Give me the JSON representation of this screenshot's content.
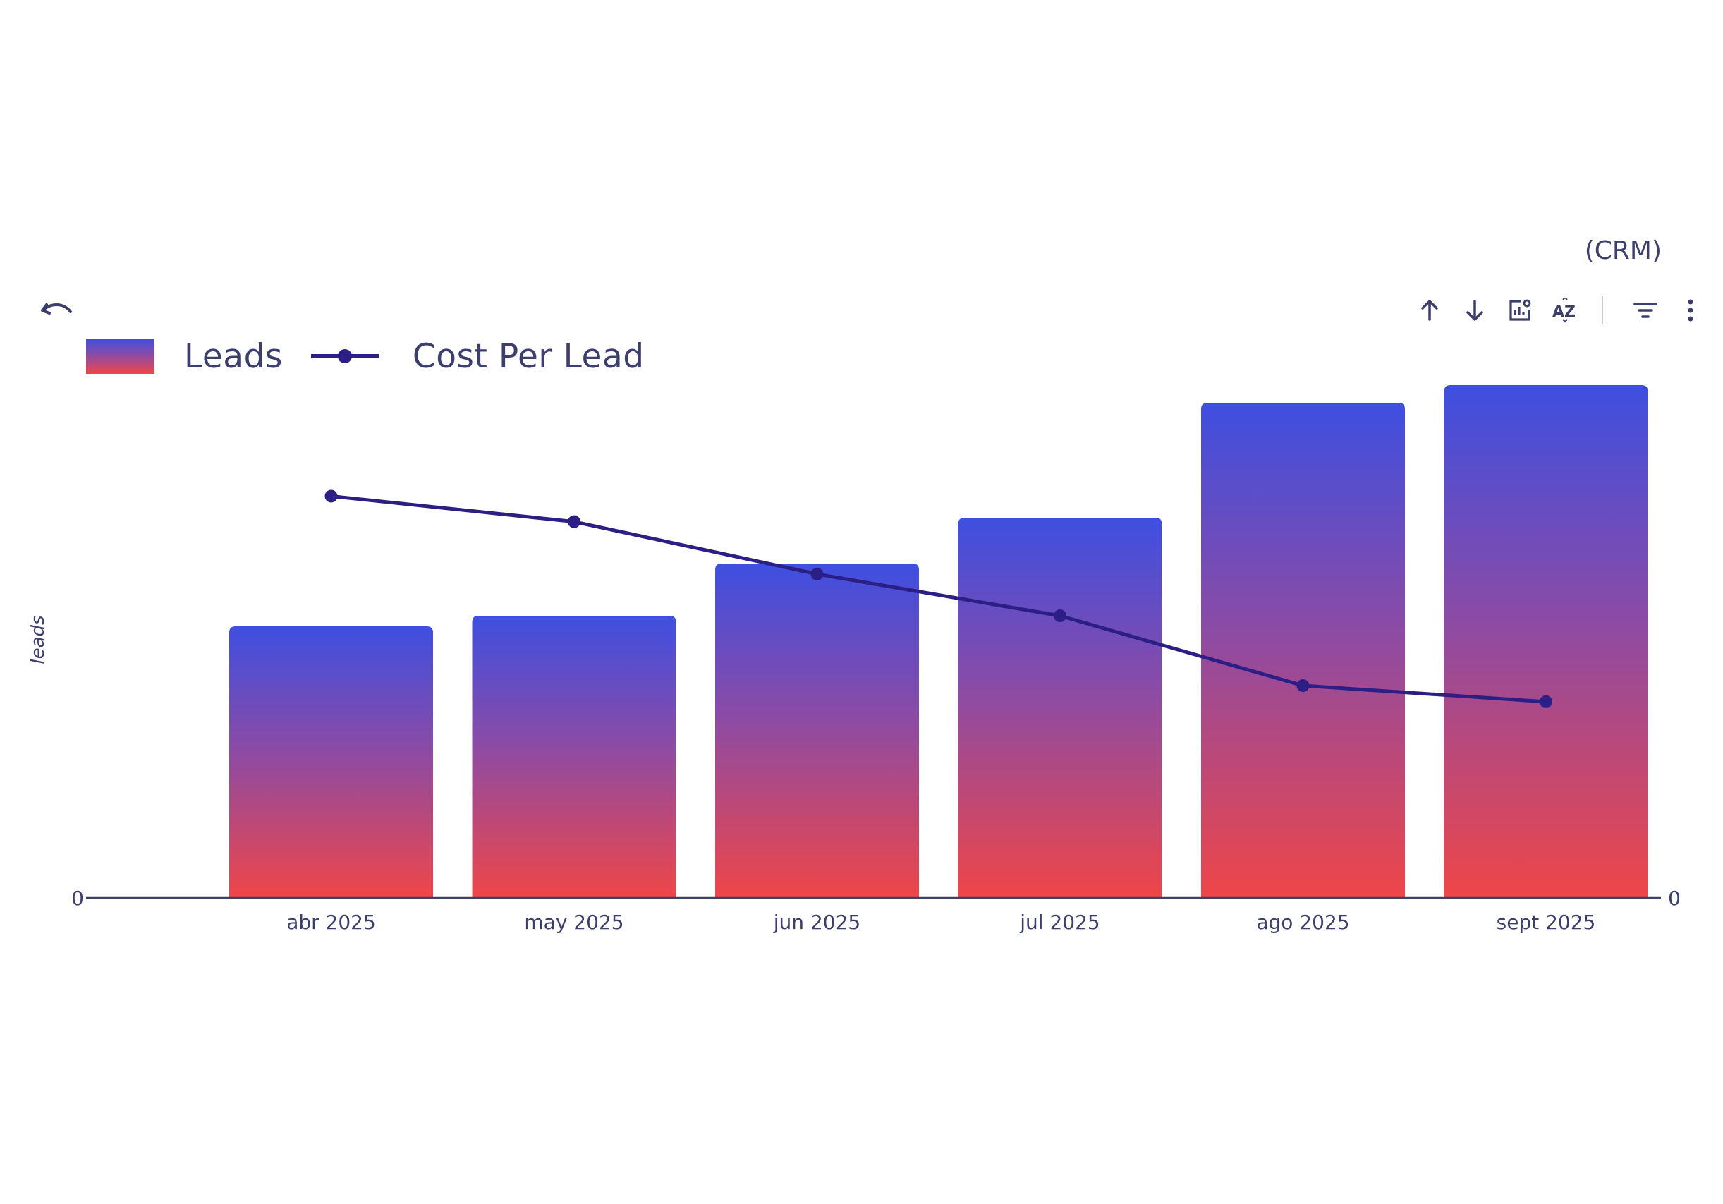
{
  "header": {
    "source_tag": "(CRM)"
  },
  "toolbar": {
    "icons": [
      "sort-ascending-icon",
      "sort-descending-icon",
      "chart-settings-icon",
      "sort-alpha-icon",
      "filter-icon",
      "more-options-icon"
    ]
  },
  "colors": {
    "bar_top": "#3e4fe0",
    "bar_mid": "#8a4ba6",
    "bar_bottom": "#ef4648",
    "line": "#2b1f86",
    "axis": "#3c3f6b"
  },
  "chart_data": {
    "type": "bar",
    "categories": [
      "abr 2025",
      "may 2025",
      "jun 2025",
      "jul 2025",
      "ago 2025",
      "sept 2025"
    ],
    "series": [
      {
        "name": "Leads",
        "type": "bar",
        "axis": "left",
        "values": [
          385,
          400,
          474,
          539,
          702,
          727
        ]
      },
      {
        "name": "Cost Per Lead",
        "type": "line",
        "axis": "right",
        "values": [
          59.8,
          56.0,
          48.2,
          42.0,
          31.6,
          29.2
        ]
      }
    ],
    "ylabel": "leads",
    "ylim": [
      0,
      800
    ],
    "y2lim": [
      0,
      84
    ],
    "ytick_labels": [
      "0"
    ],
    "y2tick_labels": [
      "0"
    ],
    "legend": "top-left",
    "grid": false
  }
}
